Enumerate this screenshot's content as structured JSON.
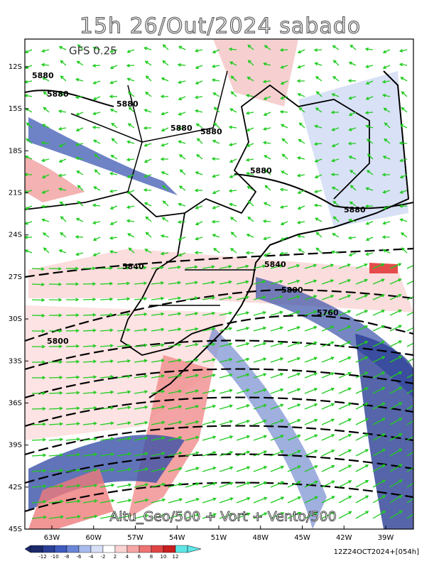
{
  "header": {
    "title": "15h 26/Out/2024 sabado",
    "model": "GFS 0.25"
  },
  "map": {
    "lat_labels": [
      "12S",
      "15S",
      "18S",
      "21S",
      "24S",
      "27S",
      "30S",
      "33S",
      "36S",
      "39S",
      "42S",
      "45S"
    ],
    "lon_labels": [
      "63W",
      "60W",
      "57W",
      "54W",
      "51W",
      "48W",
      "45W",
      "42W",
      "39W"
    ],
    "contour_labels": [
      "5880",
      "5880",
      "5880",
      "5880",
      "5880",
      "5880",
      "5880",
      "5840",
      "5840",
      "5800",
      "5800",
      "5760"
    ],
    "caption": "Altu_Geo/500 + Vort + Vento/500"
  },
  "colorbar": {
    "labels": [
      "-12",
      "-10",
      "-8",
      "-6",
      "-4",
      "-2",
      "2",
      "4",
      "6",
      "8",
      "10",
      "12"
    ]
  },
  "footer": {
    "timestamp": "12Z24OCT2024+[054h]"
  }
}
